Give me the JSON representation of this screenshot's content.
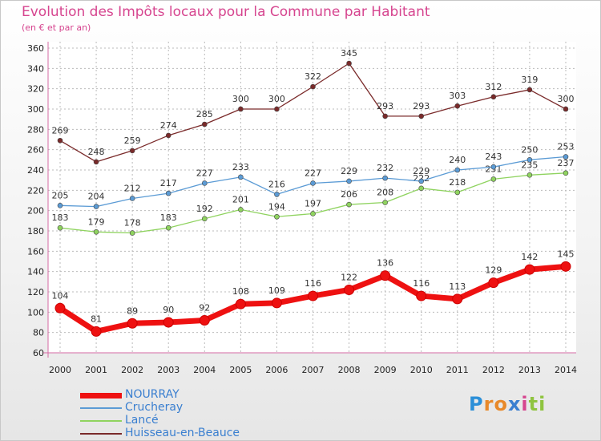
{
  "chart_data": {
    "type": "line",
    "title": "Evolution des Impôts locaux pour la Commune par Habitant",
    "subtitle": "(en € et par an)",
    "x": [
      "2000",
      "2001",
      "2002",
      "2003",
      "2004",
      "2005",
      "2006",
      "2007",
      "2008",
      "2009",
      "2010",
      "2011",
      "2012",
      "2013",
      "2014"
    ],
    "ylim": [
      60,
      360
    ],
    "yticks": [
      60,
      80,
      100,
      120,
      140,
      160,
      180,
      200,
      220,
      240,
      260,
      280,
      300,
      320,
      340,
      360
    ],
    "grid": true,
    "legend_position": "bottom-left",
    "series": [
      {
        "name": "NOURRAY",
        "color": "#ee1111",
        "values": [
          104,
          81,
          89,
          90,
          92,
          108,
          109,
          116,
          122,
          136,
          116,
          113,
          129,
          142,
          145
        ]
      },
      {
        "name": "Crucheray",
        "color": "#5b9bd5",
        "values": [
          205,
          204,
          212,
          217,
          227,
          233,
          216,
          227,
          229,
          232,
          229,
          240,
          243,
          250,
          253
        ]
      },
      {
        "name": "Lancé",
        "color": "#8fd35f",
        "values": [
          183,
          179,
          178,
          183,
          192,
          201,
          194,
          197,
          206,
          208,
          222,
          218,
          231,
          235,
          237
        ]
      },
      {
        "name": "Huisseau-en-Beauce",
        "color": "#7a2a2a",
        "values": [
          269,
          248,
          259,
          274,
          285,
          300,
          300,
          322,
          345,
          293,
          293,
          303,
          312,
          319,
          300
        ]
      }
    ]
  },
  "logo": {
    "text": "Proxiti",
    "letters": [
      "P",
      "r",
      "o",
      "x",
      "i",
      "t",
      "i"
    ],
    "colors": [
      "#2b8fd8",
      "#e8892a",
      "#e8892a",
      "#3a7fd0",
      "#d6458f",
      "#8fc43f",
      "#8fc43f"
    ]
  }
}
